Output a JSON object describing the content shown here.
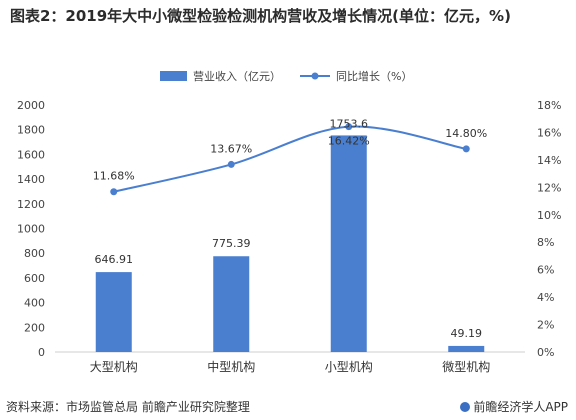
{
  "title": "图表2：2019年大中小微型检验检测机构营收及增长情况(单位：亿元，%)",
  "source": "资料来源：市场监管总局 前瞻产业研究院整理",
  "brand": "前瞻经济学人APP",
  "colors": {
    "bar": "#4a7fd0",
    "line": "#4a7fd0",
    "axis": "#cfcfcf",
    "text": "#444444"
  },
  "chart_data": {
    "type": "bar",
    "categories": [
      "大型机构",
      "中型机构",
      "小型机构",
      "微型机构"
    ],
    "series": [
      {
        "name": "营业收入（亿元）",
        "type": "bar",
        "axis": "left",
        "values": [
          646.91,
          775.39,
          1753.6,
          49.19
        ],
        "labels": [
          "646.91",
          "775.39",
          "1753.6",
          "49.19"
        ]
      },
      {
        "name": "同比增长（%）",
        "type": "line",
        "axis": "right",
        "values": [
          11.68,
          13.67,
          16.42,
          14.8
        ],
        "labels": [
          "11.68%",
          "13.67%",
          "16.42%",
          "14.80%"
        ]
      }
    ],
    "y_left": {
      "min": 0,
      "max": 2000,
      "ticks": [
        "0",
        "200",
        "400",
        "600",
        "800",
        "1000",
        "1200",
        "1400",
        "1600",
        "1800",
        "2000"
      ]
    },
    "y_right": {
      "min": 0,
      "max": 18,
      "ticks": [
        "0%",
        "2%",
        "4%",
        "6%",
        "8%",
        "10%",
        "12%",
        "14%",
        "16%",
        "18%"
      ]
    },
    "legend_placement": "top-center",
    "grid": false
  }
}
